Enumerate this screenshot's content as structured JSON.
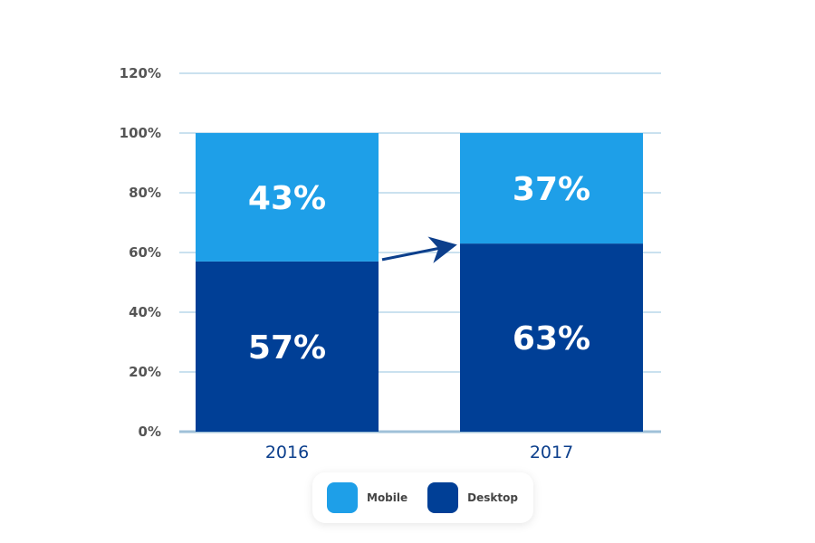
{
  "chart_data": {
    "type": "bar",
    "stacked": true,
    "categories": [
      "2016",
      "2017"
    ],
    "series": [
      {
        "name": "Desktop",
        "values": [
          57,
          63
        ],
        "labels": [
          "57%",
          "63%"
        ],
        "color": "#003f96"
      },
      {
        "name": "Mobile",
        "values": [
          43,
          37
        ],
        "labels": [
          "43%",
          "37%"
        ],
        "color": "#1e9fe8"
      }
    ],
    "ylim": [
      0,
      120
    ],
    "y_ticks": [
      0,
      20,
      40,
      60,
      80,
      100,
      120
    ],
    "y_tick_labels": [
      "0%",
      "20%",
      "40%",
      "60%",
      "80%",
      "100%",
      "120%"
    ],
    "grid": true,
    "grid_color": "#b9d7ea",
    "legend_position": "bottom",
    "annotation": "arrow from 2016 Desktop to 2017 Desktop"
  },
  "legend": {
    "items": [
      {
        "label": "Mobile",
        "color": "#1e9fe8"
      },
      {
        "label": "Desktop",
        "color": "#003f96"
      }
    ]
  }
}
